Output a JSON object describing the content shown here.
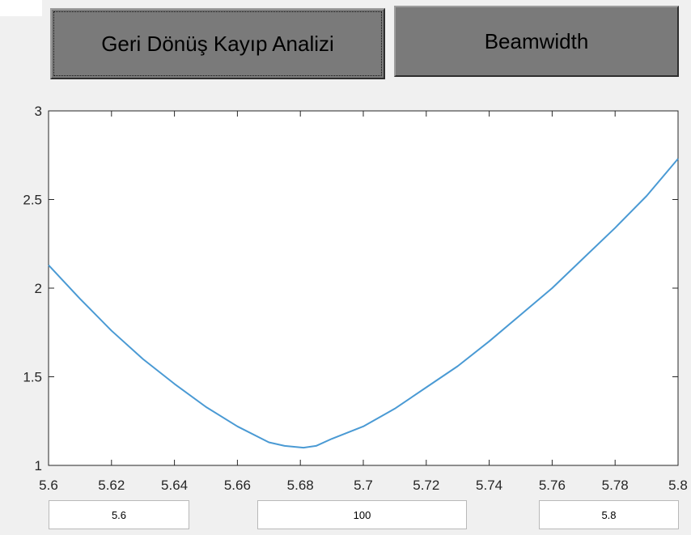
{
  "buttons": {
    "return_loss_label": "Geri Dönüş Kayıp Analizi",
    "beamwidth_label": "Beamwidth"
  },
  "inputs": {
    "freq_min": "5.6",
    "points": "100",
    "freq_max": "5.8"
  },
  "colors": {
    "line": "#4a9ad4",
    "button": "#7a7a7a",
    "background": "#f0f0f0"
  },
  "chart_data": {
    "type": "line",
    "title": "",
    "xlabel": "",
    "ylabel": "",
    "xlim": [
      5.6,
      5.8
    ],
    "ylim": [
      1,
      3
    ],
    "xticks": [
      "5.6",
      "5.62",
      "5.64",
      "5.66",
      "5.68",
      "5.7",
      "5.72",
      "5.74",
      "5.76",
      "5.78",
      "5.8"
    ],
    "yticks": [
      "1",
      "1.5",
      "2",
      "2.5",
      "3"
    ],
    "grid": false,
    "series": [
      {
        "x": [
          5.6,
          5.61,
          5.62,
          5.63,
          5.64,
          5.65,
          5.66,
          5.67,
          5.675,
          5.681,
          5.685,
          5.69,
          5.7,
          5.71,
          5.72,
          5.73,
          5.74,
          5.75,
          5.76,
          5.77,
          5.78,
          5.79,
          5.8
        ],
        "y": [
          2.13,
          1.94,
          1.76,
          1.6,
          1.46,
          1.33,
          1.22,
          1.13,
          1.11,
          1.1,
          1.11,
          1.15,
          1.22,
          1.32,
          1.44,
          1.56,
          1.7,
          1.85,
          2.0,
          2.17,
          2.34,
          2.52,
          2.73
        ]
      }
    ]
  }
}
